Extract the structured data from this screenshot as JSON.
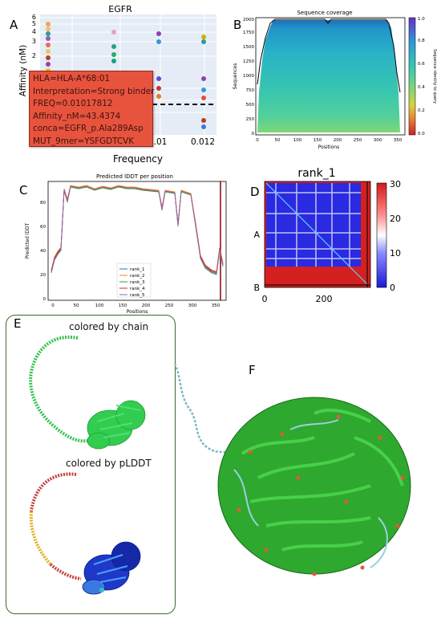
{
  "panel_letters": {
    "a": "A",
    "b": "B",
    "c": "C",
    "d": "D",
    "e": "E",
    "f": "F"
  },
  "panelA": {
    "title": "EGFR",
    "ylabel": "Affinity (nM)",
    "xlabel": "Frequency",
    "yticks": [
      "6",
      "5",
      "4",
      "3",
      "2"
    ],
    "xticks": [
      ".01",
      "0.012"
    ],
    "tooltip": [
      "HLA=HLA-A*68:01",
      "Interpretation=Strong binder",
      "FREQ=0.01017812",
      "Affinity_nM=43.4374",
      "conca=EGFR_p.Ala289Asp",
      "MUT_9mer=YSFGDTCVK"
    ],
    "colors": {
      "tooltip": "#e8533d",
      "bg": "#e5ecf6"
    }
  },
  "panelB": {
    "title": "Sequence coverage",
    "ylabel": "Sequences",
    "xlabel": "Positions",
    "yticks": [
      "0",
      "250",
      "500",
      "750",
      "1000",
      "1250",
      "1500",
      "1750",
      "2000"
    ],
    "xticks": [
      "0",
      "50",
      "100",
      "150",
      "200",
      "250",
      "300",
      "350"
    ],
    "cbar_label": "Sequence identity to query",
    "cbar_ticks": [
      "0.0",
      "0.2",
      "0.4",
      "0.6",
      "0.8",
      "1.0"
    ]
  },
  "panelC": {
    "title": "Predicted lDDT per position",
    "ylabel": "Predicted lDDT",
    "xlabel": "Positions",
    "yticks": [
      "0",
      "20",
      "40",
      "60",
      "80"
    ],
    "xticks": [
      "0",
      "50",
      "100",
      "150",
      "200",
      "250",
      "300",
      "350"
    ],
    "legend": [
      "rank_1",
      "rank_2",
      "rank_3",
      "rank_4",
      "rank_5"
    ],
    "colors": [
      "#1f77b4",
      "#ff7f0e",
      "#2ca02c",
      "#d62728",
      "#9467bd"
    ]
  },
  "panelD": {
    "title": "rank_1",
    "xticks": [
      "0",
      "200"
    ],
    "ylabels": [
      "A",
      "B"
    ],
    "cbar_ticks": [
      "0",
      "10",
      "20",
      "30"
    ]
  },
  "panelE": {
    "caption_chain": "colored by chain",
    "caption_plddt": "colored by pLDDT"
  }
}
